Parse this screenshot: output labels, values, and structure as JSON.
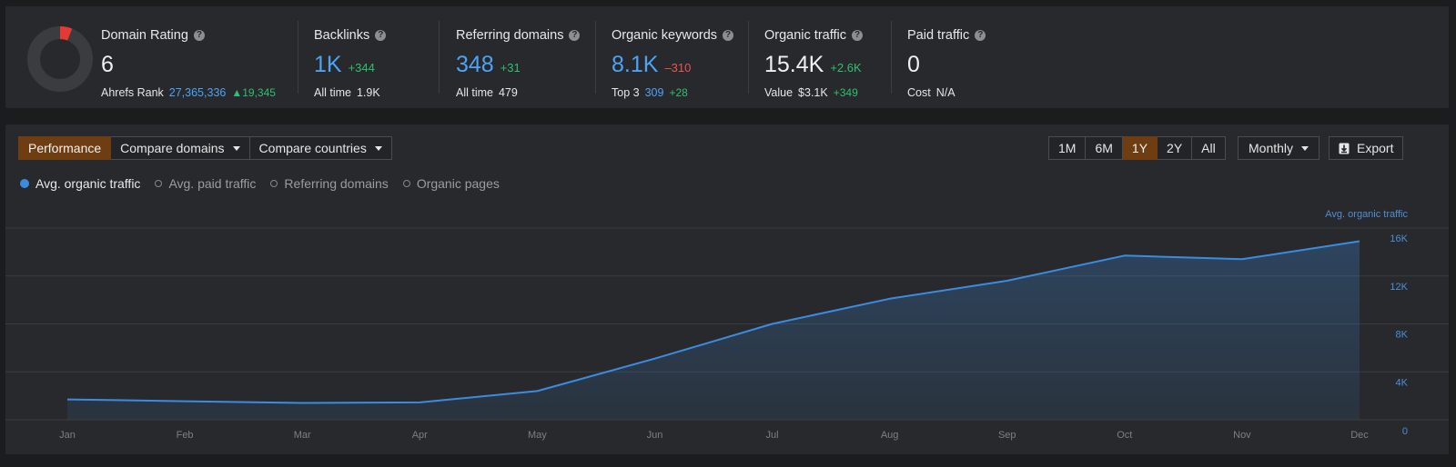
{
  "metrics": {
    "domain_rating": {
      "label": "Domain Rating",
      "value": "6",
      "donut_fraction": 0.06,
      "rank_label": "Ahrefs Rank",
      "rank_value": "27,365,336",
      "rank_delta": "19,345"
    },
    "backlinks": {
      "label": "Backlinks",
      "value": "1K",
      "delta": "+344",
      "sub_label": "All time",
      "sub_value": "1.9K"
    },
    "referring_domains": {
      "label": "Referring domains",
      "value": "348",
      "delta": "+31",
      "sub_label": "All time",
      "sub_value": "479"
    },
    "organic_keywords": {
      "label": "Organic keywords",
      "value": "8.1K",
      "delta": "–310",
      "sub_label": "Top 3",
      "sub_value": "309",
      "sub_delta": "+28"
    },
    "organic_traffic": {
      "label": "Organic traffic",
      "value": "15.4K",
      "delta": "+2.6K",
      "sub_label": "Value",
      "sub_value": "$3.1K",
      "sub_delta": "+349"
    },
    "paid_traffic": {
      "label": "Paid traffic",
      "value": "0",
      "sub_label": "Cost",
      "sub_value": "N/A"
    },
    "help_glyph": "?"
  },
  "toolbar": {
    "tabs": [
      "Performance",
      "Compare domains",
      "Compare countries"
    ],
    "ranges": [
      "1M",
      "6M",
      "1Y",
      "2Y",
      "All"
    ],
    "active_range": "1Y",
    "interval": "Monthly",
    "export_label": "Export"
  },
  "legend": [
    "Avg. organic traffic",
    "Avg. paid traffic",
    "Referring domains",
    "Organic pages"
  ],
  "colors": {
    "accent": "#6e3e12",
    "series": "#3b8ce0",
    "positive": "#2fbf71",
    "negative": "#ef5350",
    "rating": "#e53935"
  },
  "chart_data": {
    "type": "area",
    "x": [
      "Jan",
      "Feb",
      "Mar",
      "Apr",
      "May",
      "Jun",
      "Jul",
      "Aug",
      "Sep",
      "Oct",
      "Nov",
      "Dec"
    ],
    "series": [
      {
        "name": "Avg. organic traffic",
        "values": [
          1700,
          1550,
          1400,
          1450,
          2400,
          5100,
          8000,
          10100,
          11600,
          13700,
          13400,
          14900
        ]
      }
    ],
    "ylabel": "Avg. organic traffic",
    "y_ticks": [
      "0",
      "4K",
      "8K",
      "12K",
      "16K"
    ],
    "ylim": [
      0,
      16000
    ],
    "grid": true,
    "y_axis_position": "right"
  }
}
